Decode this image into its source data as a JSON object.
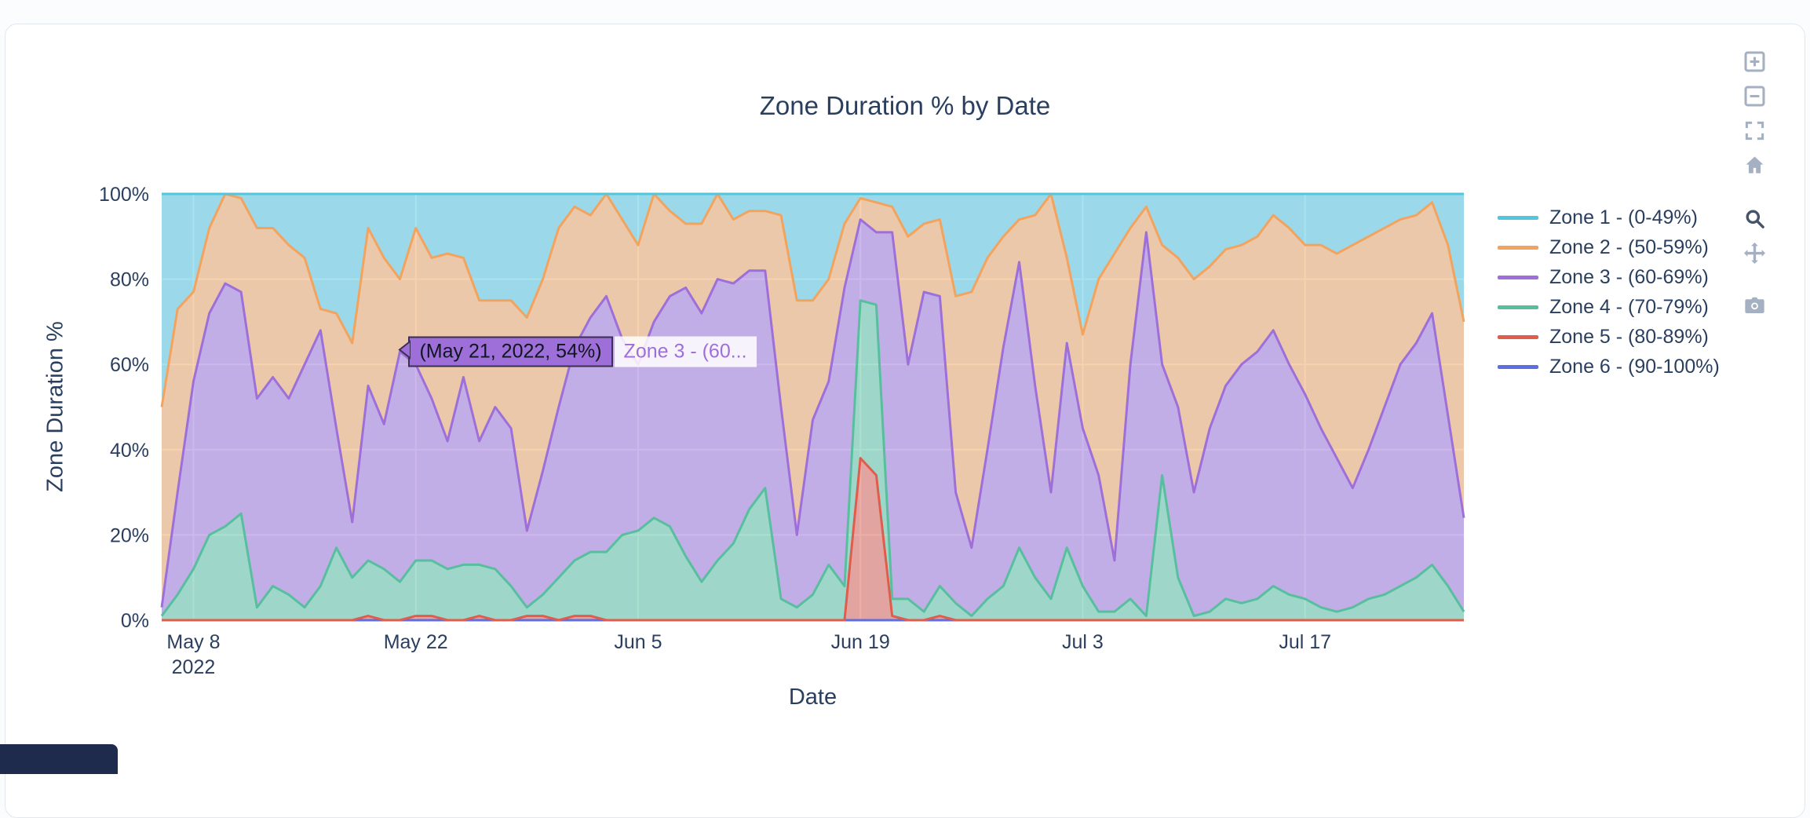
{
  "colors": {
    "text": "#2a3f5f",
    "plot_bg": "#e5ecf6",
    "grid": "#ffffff",
    "paper_bg": "#ffffff",
    "modebar": "#a5b1c2",
    "modebar_active": "#44546b",
    "badge_bg": "#1e2b4d"
  },
  "chart_data": {
    "type": "area",
    "stacked": true,
    "title": "Zone Duration % by Date",
    "xlabel": "Date",
    "ylabel": "Zone Duration %",
    "ylim": [
      0,
      100
    ],
    "grid": true,
    "legend_position": "right",
    "x_type": "date",
    "x": [
      "2022-05-06",
      "2022-05-07",
      "2022-05-08",
      "2022-05-09",
      "2022-05-10",
      "2022-05-11",
      "2022-05-12",
      "2022-05-13",
      "2022-05-14",
      "2022-05-15",
      "2022-05-16",
      "2022-05-17",
      "2022-05-18",
      "2022-05-19",
      "2022-05-20",
      "2022-05-21",
      "2022-05-22",
      "2022-05-23",
      "2022-05-24",
      "2022-05-25",
      "2022-05-26",
      "2022-05-27",
      "2022-05-28",
      "2022-05-29",
      "2022-05-30",
      "2022-05-31",
      "2022-06-01",
      "2022-06-02",
      "2022-06-03",
      "2022-06-04",
      "2022-06-05",
      "2022-06-06",
      "2022-06-07",
      "2022-06-08",
      "2022-06-09",
      "2022-06-10",
      "2022-06-11",
      "2022-06-12",
      "2022-06-13",
      "2022-06-14",
      "2022-06-15",
      "2022-06-16",
      "2022-06-17",
      "2022-06-18",
      "2022-06-19",
      "2022-06-20",
      "2022-06-21",
      "2022-06-22",
      "2022-06-23",
      "2022-06-24",
      "2022-06-25",
      "2022-06-26",
      "2022-06-27",
      "2022-06-28",
      "2022-06-29",
      "2022-06-30",
      "2022-07-01",
      "2022-07-02",
      "2022-07-03",
      "2022-07-04",
      "2022-07-05",
      "2022-07-06",
      "2022-07-07",
      "2022-07-08",
      "2022-07-09",
      "2022-07-10",
      "2022-07-11",
      "2022-07-12",
      "2022-07-13",
      "2022-07-14",
      "2022-07-15",
      "2022-07-16",
      "2022-07-17",
      "2022-07-18",
      "2022-07-19",
      "2022-07-20",
      "2022-07-21",
      "2022-07-22",
      "2022-07-23",
      "2022-07-24",
      "2022-07-25",
      "2022-07-26",
      "2022-07-27"
    ],
    "x_ticks": [
      {
        "index": 2,
        "label": "May 8",
        "sublabel": "2022"
      },
      {
        "index": 16,
        "label": "May 22"
      },
      {
        "index": 30,
        "label": "Jun 5"
      },
      {
        "index": 44,
        "label": "Jun 19"
      },
      {
        "index": 58,
        "label": "Jul 3"
      },
      {
        "index": 72,
        "label": "Jul 17"
      }
    ],
    "y_ticks": [
      {
        "value": 0,
        "label": "0%"
      },
      {
        "value": 20,
        "label": "20%"
      },
      {
        "value": 40,
        "label": "40%"
      },
      {
        "value": 60,
        "label": "60%"
      },
      {
        "value": 80,
        "label": "80%"
      },
      {
        "value": 100,
        "label": "100%"
      }
    ],
    "stack_bottom_to_top": [
      "zone6",
      "zone5",
      "zone4",
      "zone3",
      "zone2",
      "zone1"
    ],
    "series": [
      {
        "id": "zone1",
        "name": "Zone 1 - (0-49%)",
        "color": "#52c6dd",
        "values": [
          50,
          27,
          23,
          8,
          0,
          1,
          8,
          8,
          12,
          15,
          27,
          28,
          35,
          8,
          15,
          20,
          8,
          15,
          14,
          15,
          25,
          25,
          25,
          29,
          20,
          8,
          3,
          5,
          0,
          6,
          12,
          0,
          4,
          7,
          7,
          0,
          6,
          4,
          4,
          5,
          25,
          25,
          20,
          7,
          1,
          2,
          3,
          10,
          7,
          6,
          24,
          23,
          15,
          10,
          6,
          5,
          0,
          15,
          33,
          20,
          14,
          8,
          3,
          12,
          15,
          20,
          17,
          13,
          12,
          10,
          5,
          8,
          12,
          12,
          14,
          12,
          10,
          8,
          6,
          5,
          2,
          12,
          30
        ]
      },
      {
        "id": "zone2",
        "name": "Zone 2 - (50-59%)",
        "color": "#f2a35e",
        "values": [
          47,
          43,
          21,
          20,
          21,
          22,
          40,
          35,
          36,
          25,
          5,
          27,
          42,
          37,
          39,
          17,
          32,
          33,
          44,
          28,
          33,
          25,
          30,
          50,
          45,
          42,
          33,
          24,
          24,
          28,
          28,
          30,
          20,
          15,
          21,
          20,
          15,
          14,
          14,
          45,
          55,
          28,
          24,
          15,
          5,
          7,
          6,
          30,
          16,
          18,
          46,
          60,
          45,
          26,
          10,
          40,
          70,
          20,
          22,
          46,
          72,
          32,
          6,
          28,
          35,
          50,
          38,
          32,
          28,
          27,
          27,
          32,
          35,
          43,
          48,
          57,
          50,
          42,
          34,
          30,
          26,
          40,
          46
        ]
      },
      {
        "id": "zone3",
        "name": "Zone 3 - (60-69%)",
        "color": "#9e6fd8",
        "values": [
          2,
          24,
          44,
          52,
          57,
          52,
          49,
          49,
          46,
          57,
          60,
          28,
          13,
          41,
          34,
          54,
          46,
          38,
          30,
          44,
          29,
          38,
          37,
          18,
          29,
          40,
          50,
          55,
          60,
          46,
          39,
          46,
          54,
          63,
          63,
          66,
          61,
          56,
          51,
          45,
          17,
          41,
          43,
          70,
          19,
          17,
          86,
          55,
          75,
          68,
          26,
          16,
          35,
          56,
          67,
          45,
          25,
          48,
          37,
          32,
          12,
          55,
          90,
          26,
          40,
          29,
          43,
          50,
          56,
          58,
          60,
          54,
          48,
          42,
          36,
          28,
          35,
          44,
          52,
          55,
          59,
          40,
          22
        ]
      },
      {
        "id": "zone4",
        "name": "Zone 4 - (70-79%)",
        "color": "#57bf9d",
        "values": [
          1,
          6,
          12,
          20,
          22,
          25,
          3,
          8,
          6,
          3,
          8,
          17,
          10,
          13,
          12,
          9,
          13,
          13,
          12,
          13,
          12,
          12,
          8,
          2,
          5,
          10,
          13,
          15,
          16,
          20,
          21,
          24,
          22,
          15,
          9,
          14,
          18,
          26,
          31,
          5,
          3,
          6,
          13,
          8,
          37,
          40,
          4,
          5,
          2,
          7,
          4,
          1,
          5,
          8,
          17,
          10,
          5,
          17,
          8,
          2,
          2,
          5,
          1,
          34,
          10,
          1,
          2,
          5,
          4,
          5,
          8,
          6,
          5,
          3,
          2,
          3,
          5,
          6,
          8,
          10,
          13,
          8,
          2
        ]
      },
      {
        "id": "zone5",
        "name": "Zone 5 - (80-89%)",
        "color": "#e05c4b",
        "values": [
          0,
          0,
          0,
          0,
          0,
          0,
          0,
          0,
          0,
          0,
          0,
          0,
          0,
          1,
          0,
          0,
          1,
          1,
          0,
          0,
          1,
          0,
          0,
          1,
          1,
          0,
          1,
          1,
          0,
          0,
          0,
          0,
          0,
          0,
          0,
          0,
          0,
          0,
          0,
          0,
          0,
          0,
          0,
          0,
          38,
          34,
          1,
          0,
          0,
          1,
          0,
          0,
          0,
          0,
          0,
          0,
          0,
          0,
          0,
          0,
          0,
          0,
          0,
          0,
          0,
          0,
          0,
          0,
          0,
          0,
          0,
          0,
          0,
          0,
          0,
          0,
          0,
          0,
          0,
          0,
          0,
          0,
          0
        ]
      },
      {
        "id": "zone6",
        "name": "Zone 6 - (90-100%)",
        "color": "#5d6fe0",
        "values": [
          0,
          0,
          0,
          0,
          0,
          0,
          0,
          0,
          0,
          0,
          0,
          0,
          0,
          0,
          0,
          0,
          0,
          0,
          0,
          0,
          0,
          0,
          0,
          0,
          0,
          0,
          0,
          0,
          0,
          0,
          0,
          0,
          0,
          0,
          0,
          0,
          0,
          0,
          0,
          0,
          0,
          0,
          0,
          0,
          0,
          0,
          0,
          0,
          0,
          0,
          0,
          0,
          0,
          0,
          0,
          0,
          0,
          0,
          0,
          0,
          0,
          0,
          0,
          0,
          0,
          0,
          0,
          0,
          0,
          0,
          0,
          0,
          0,
          0,
          0,
          0,
          0,
          0,
          0,
          0,
          0,
          0,
          0
        ]
      }
    ]
  },
  "tooltip": {
    "point_label": "(May 21, 2022, 54%)",
    "series_label": "Zone 3 - (60...",
    "x_index": 15,
    "y_percent": 63,
    "bg": "#9e6fd8",
    "border": "#3b2f52",
    "text_color": "#101522",
    "name_color": "#9e6fd8"
  },
  "modebar": {
    "items": [
      {
        "name": "zoom-in",
        "icon": "plus-square-icon"
      },
      {
        "name": "zoom-out",
        "icon": "minus-square-icon"
      },
      {
        "name": "autoscale",
        "icon": "expand-icon"
      },
      {
        "name": "reset-axes",
        "icon": "home-icon",
        "gap_after": true
      },
      {
        "name": "zoom-mode",
        "icon": "magnifier-icon",
        "active": true
      },
      {
        "name": "pan-mode",
        "icon": "move-icon",
        "gap_after": true
      },
      {
        "name": "download-plot",
        "icon": "camera-icon"
      }
    ]
  }
}
